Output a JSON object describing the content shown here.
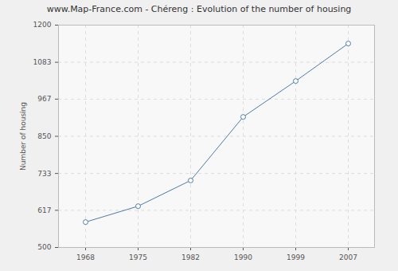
{
  "chart_data": {
    "type": "line",
    "title": "www.Map-France.com - Chéreng : Evolution of the number of housing",
    "y_label": "Number of housing",
    "categories": [
      "1968",
      "1975",
      "1982",
      "1990",
      "1999",
      "2007"
    ],
    "values": [
      580,
      630,
      711,
      911,
      1024,
      1142
    ],
    "color": "#4f7ba7",
    "marker": "circle",
    "ylim": [
      500,
      1200
    ],
    "yticks": [
      500,
      617,
      733,
      850,
      967,
      1083,
      1200
    ],
    "grid": true
  }
}
